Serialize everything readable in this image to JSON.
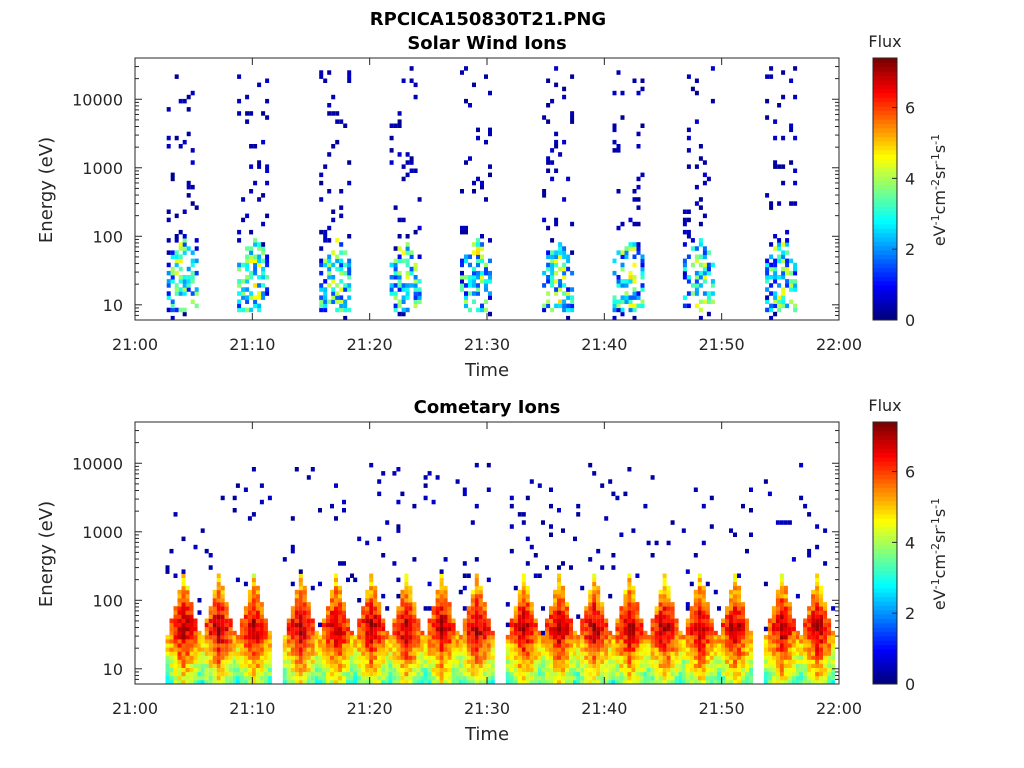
{
  "figure": {
    "title": "RPCICA150830T21.PNG",
    "background": "#ffffff"
  },
  "chart_data": [
    {
      "type": "heatmap",
      "title": "Solar Wind Ions",
      "xlabel": "Time",
      "ylabel": "Energy (eV)",
      "y_scale": "log",
      "xlim": [
        "21:00",
        "22:00"
      ],
      "ylim": [
        6,
        40000
      ],
      "x_ticks": [
        "21:00",
        "21:10",
        "21:20",
        "21:30",
        "21:40",
        "21:50",
        "22:00"
      ],
      "y_ticks": [
        10,
        100,
        1000,
        10000
      ],
      "y_tick_labels": [
        "10",
        "100",
        "1000",
        "10000"
      ],
      "colorbar": {
        "label": "Flux",
        "units_base": [
          "eV",
          "cm",
          "sr",
          "s"
        ],
        "units_exp": [
          "-1",
          "-2",
          "-1",
          "-1"
        ],
        "range": [
          0,
          7.4
        ],
        "ticks": [
          "0",
          "2",
          "4",
          "6"
        ],
        "colormap": "jet"
      },
      "scan_times": [
        "21:04",
        "21:10",
        "21:17",
        "21:23",
        "21:29",
        "21:36",
        "21:42",
        "21:48",
        "21:55"
      ],
      "core_energy_range": [
        8,
        100
      ],
      "peak_flux": 5.0,
      "sparse_energy_range": [
        100,
        30000
      ],
      "grid": false
    },
    {
      "type": "heatmap",
      "title": "Cometary Ions",
      "xlabel": "Time",
      "ylabel": "Energy (eV)",
      "y_scale": "log",
      "xlim": [
        "21:00",
        "22:00"
      ],
      "ylim": [
        6,
        40000
      ],
      "x_ticks": [
        "21:00",
        "21:10",
        "21:20",
        "21:30",
        "21:40",
        "21:50",
        "22:00"
      ],
      "y_ticks": [
        10,
        100,
        1000,
        10000
      ],
      "y_tick_labels": [
        "10",
        "100",
        "1000",
        "10000"
      ],
      "colorbar": {
        "label": "Flux",
        "units_base": [
          "eV",
          "cm",
          "sr",
          "s"
        ],
        "units_exp": [
          "-1",
          "-2",
          "-1",
          "-1"
        ],
        "range": [
          0,
          7.4
        ],
        "ticks": [
          "0",
          "2",
          "4",
          "6"
        ],
        "colormap": "jet"
      },
      "scan_times": [
        "21:04",
        "21:07",
        "21:10",
        "21:14",
        "21:17",
        "21:20",
        "21:23",
        "21:26",
        "21:29",
        "21:33",
        "21:36",
        "21:39",
        "21:42",
        "21:45",
        "21:48",
        "21:51",
        "21:55",
        "21:58"
      ],
      "core_energy_range": [
        6,
        250
      ],
      "peak_flux": 7.2,
      "peak_energy": 40,
      "sparse_energy_range": [
        250,
        10000
      ],
      "grid": false
    }
  ]
}
